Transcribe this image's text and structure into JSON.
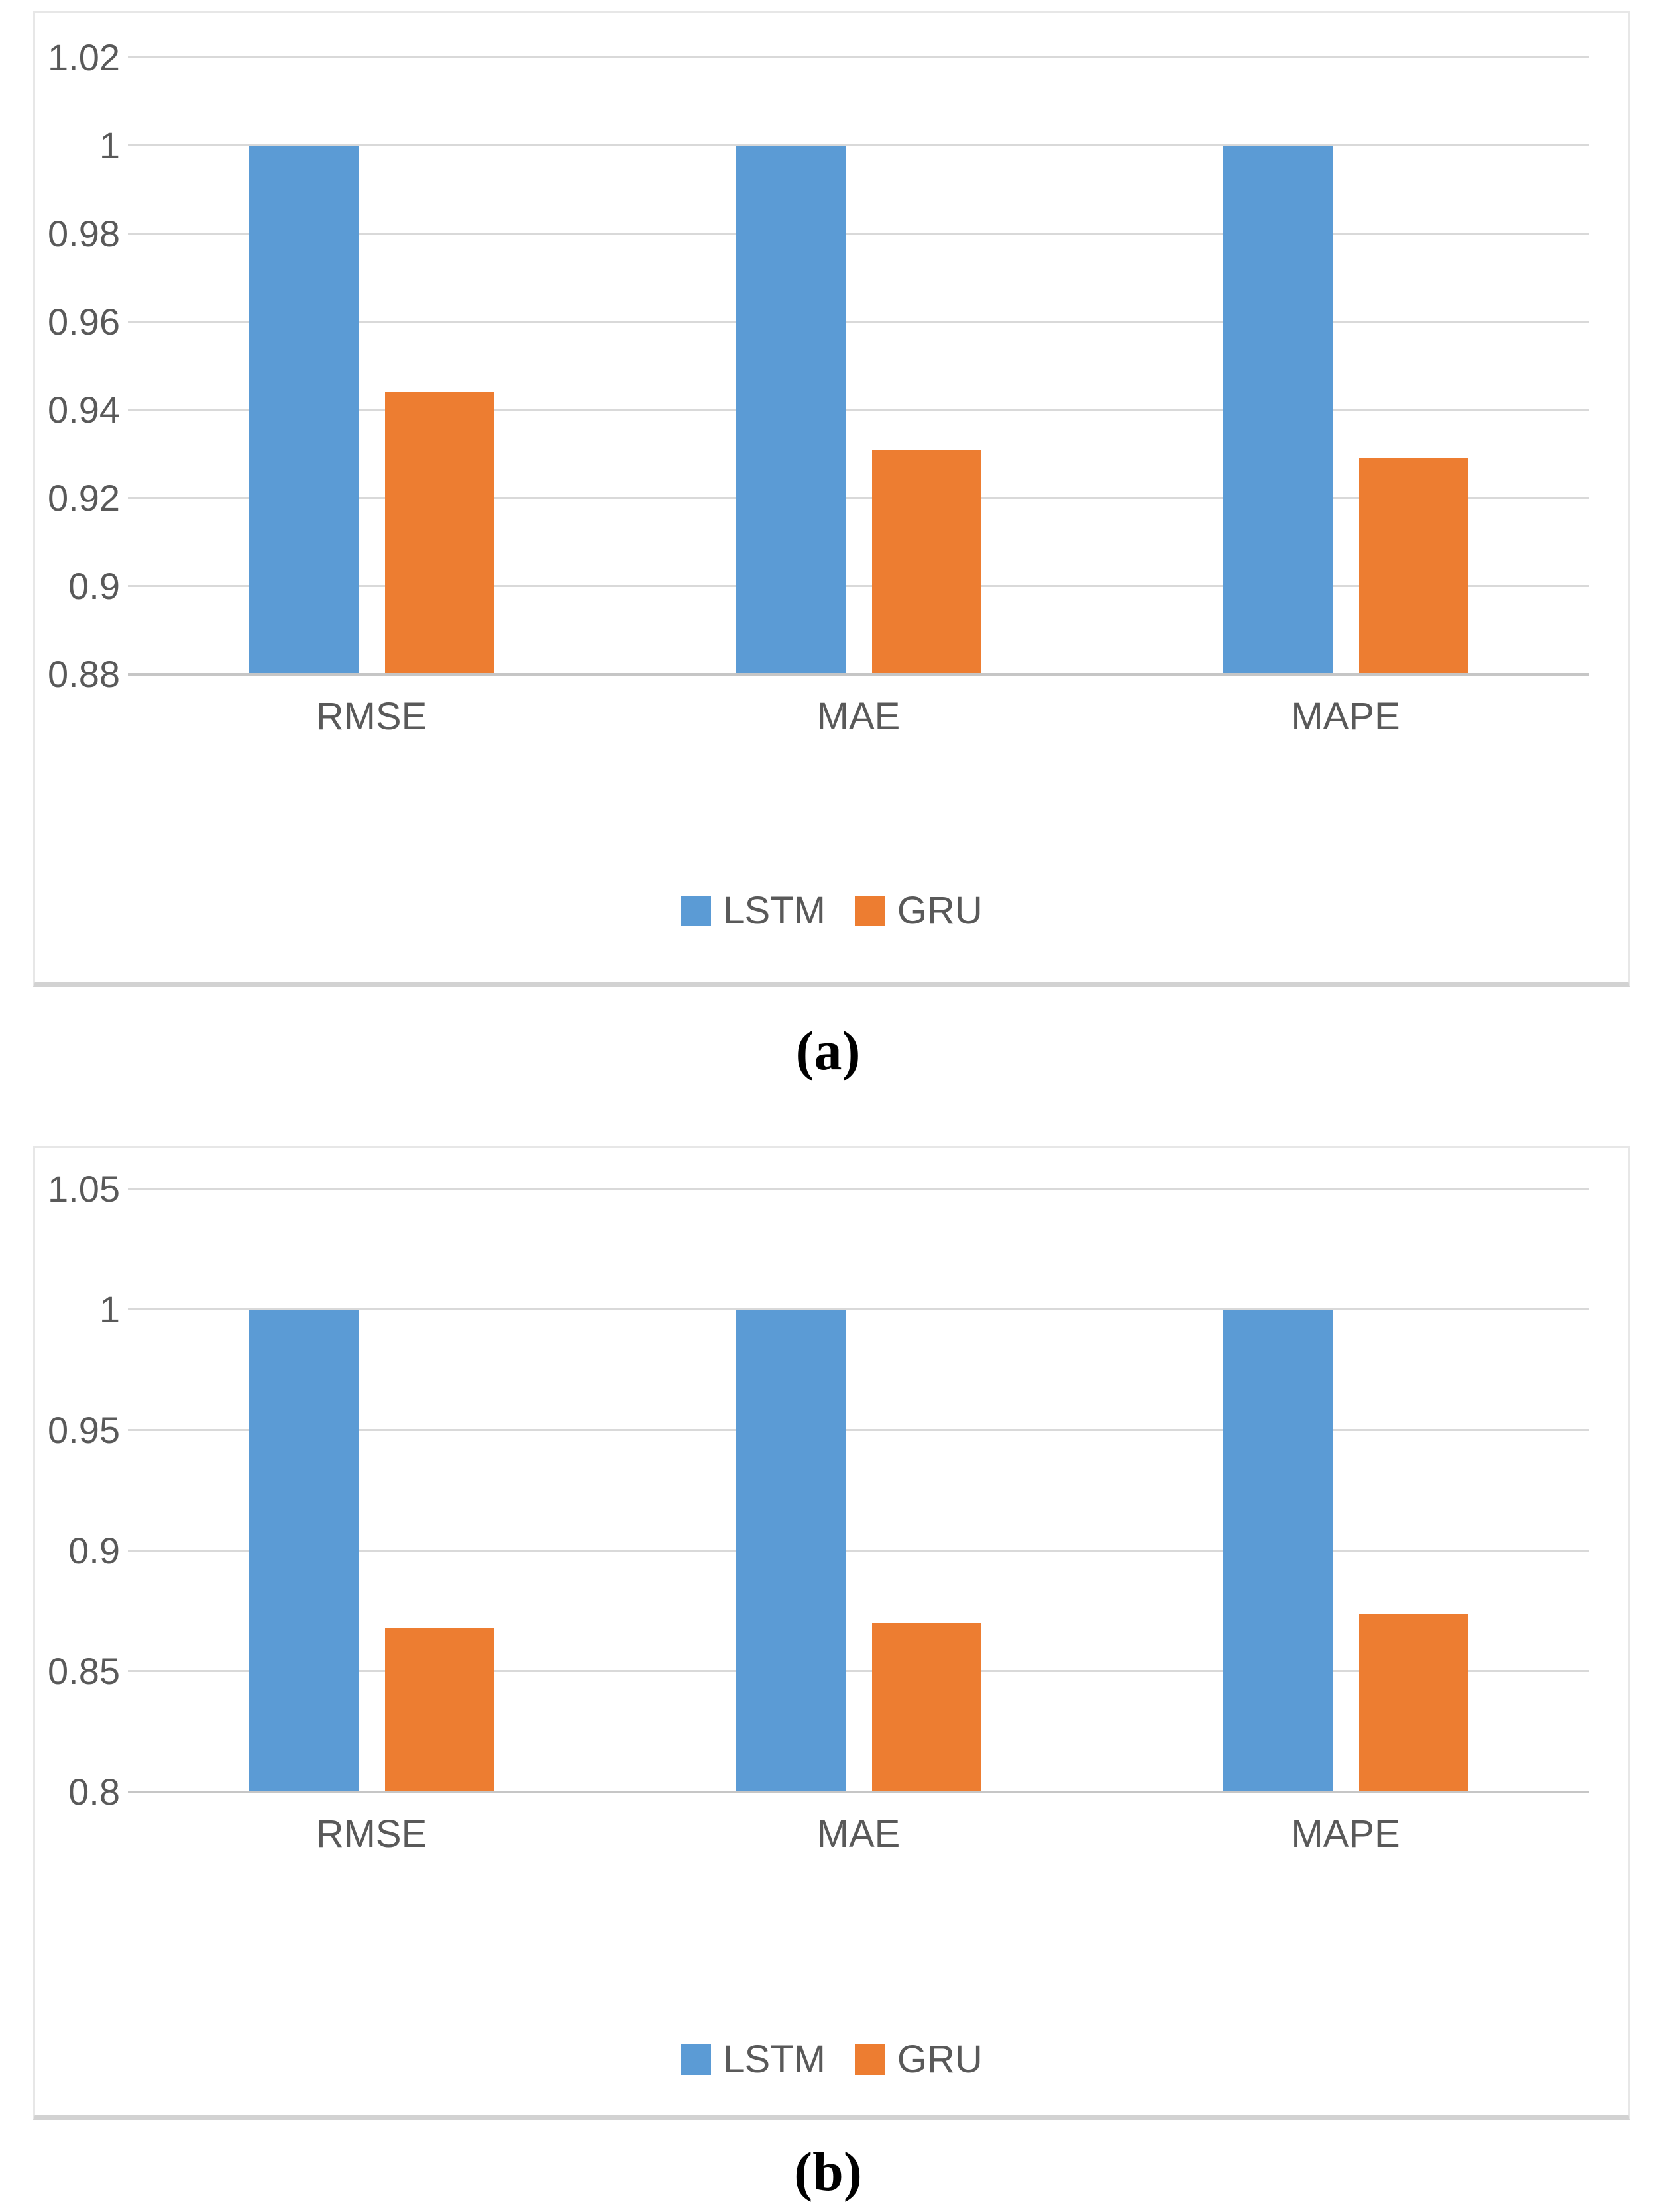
{
  "style": {
    "gridline_color": "#d9d9d9",
    "baseline_color": "#c6c6c6",
    "axis_text_color": "#595959",
    "background_color": "#ffffff"
  },
  "chart_data": [
    {
      "type": "bar",
      "caption": "(a)",
      "title": "",
      "xlabel": "",
      "ylabel": "",
      "categories": [
        "RMSE",
        "MAE",
        "MAPE"
      ],
      "series": [
        {
          "name": "LSTM",
          "color": "#5b9bd5",
          "values": [
            1.0,
            1.0,
            1.0
          ]
        },
        {
          "name": "GRU",
          "color": "#ed7d31",
          "values": [
            0.944,
            0.931,
            0.929
          ]
        }
      ],
      "ylim": [
        0.88,
        1.02
      ],
      "yticks": [
        0.88,
        0.9,
        0.92,
        0.94,
        0.96,
        0.98,
        1,
        1.02
      ],
      "ytick_labels": [
        "0.88",
        "0.9",
        "0.92",
        "0.94",
        "0.96",
        "0.98",
        "1",
        "1.02"
      ],
      "grid": true,
      "legend_position": "bottom-center",
      "legend_entries": [
        "LSTM",
        "GRU"
      ]
    },
    {
      "type": "bar",
      "caption": "(b)",
      "title": "",
      "xlabel": "",
      "ylabel": "",
      "categories": [
        "RMSE",
        "MAE",
        "MAPE"
      ],
      "series": [
        {
          "name": "LSTM",
          "color": "#5b9bd5",
          "values": [
            1.0,
            1.0,
            1.0
          ]
        },
        {
          "name": "GRU",
          "color": "#ed7d31",
          "values": [
            0.868,
            0.87,
            0.874
          ]
        }
      ],
      "ylim": [
        0.8,
        1.05
      ],
      "yticks": [
        0.8,
        0.85,
        0.9,
        0.95,
        1,
        1.05
      ],
      "ytick_labels": [
        "0.8",
        "0.85",
        "0.9",
        "0.95",
        "1",
        "1.05"
      ],
      "grid": true,
      "legend_position": "bottom-center",
      "legend_entries": [
        "LSTM",
        "GRU"
      ]
    }
  ]
}
